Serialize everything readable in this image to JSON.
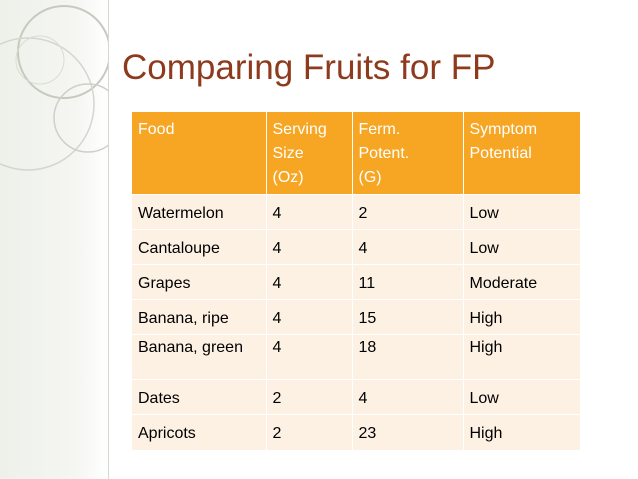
{
  "title": "Comparing Fruits for FP",
  "table": {
    "header": [
      [
        "Food"
      ],
      [
        "Serving",
        "Size",
        "(Oz)"
      ],
      [
        "Ferm.",
        "Potent.",
        "(G)"
      ],
      [
        "Symptom",
        "Potential"
      ]
    ],
    "rows": [
      [
        "Watermelon",
        "4",
        "2",
        "Low"
      ],
      [
        "Cantaloupe",
        "4",
        "4",
        "Low"
      ],
      [
        "Grapes",
        "4",
        "11",
        "Moderate"
      ],
      [
        "Banana, ripe",
        "4",
        "15",
        "High"
      ],
      [
        "Banana, green",
        "4",
        "18",
        "High"
      ],
      [
        "Dates",
        "2",
        "4",
        "Low"
      ],
      [
        "Apricots",
        "2",
        "23",
        "High"
      ]
    ]
  },
  "colors": {
    "title": "#8e3a1d",
    "header_fill": "#f6a623",
    "row_fill": "#fcf1e3",
    "decoration": "#c9cdc2"
  }
}
